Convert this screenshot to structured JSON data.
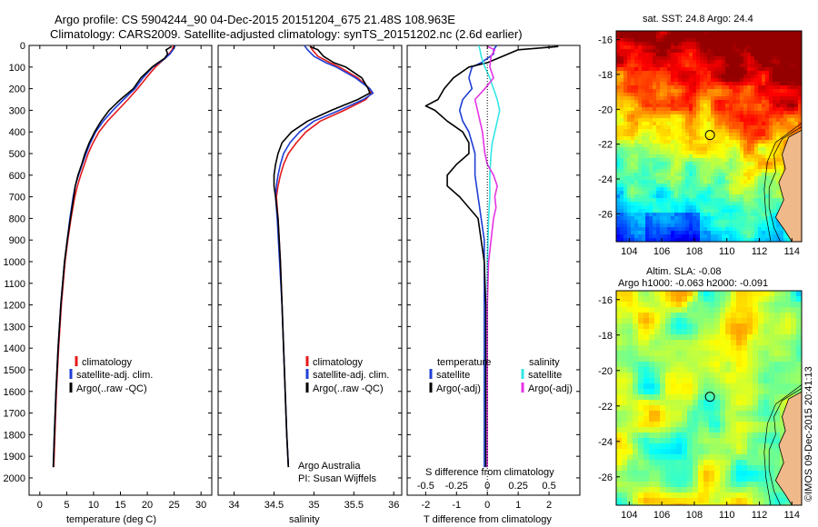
{
  "header": {
    "line1": "Argo profile: CS 5904244_90 04-Dec-2015 20151204_675 21.48S 108.963E",
    "line2": "Climatology: CARS2009. Satellite-adjusted climatology: synTS_20151202.nc (2.6d earlier)"
  },
  "colors": {
    "climatology": "#e41a1c",
    "satellite": "#1f3fd6",
    "argo": "#000000",
    "satellite_salinity": "#33e6e6",
    "argo_salinity": "#e633e6"
  },
  "chart_data": [
    {
      "type": "line",
      "name": "temperature-panel",
      "xlabel": "temperature (deg C)",
      "xlim": [
        -2,
        32
      ],
      "xticks": [
        "0",
        "5",
        "10",
        "15",
        "20",
        "25",
        "30"
      ],
      "ylim": [
        2080,
        0
      ],
      "yticks": [
        "0",
        "100",
        "200",
        "300",
        "400",
        "500",
        "600",
        "700",
        "800",
        "900",
        "1000",
        "1100",
        "1200",
        "1300",
        "1400",
        "1500",
        "1600",
        "1700",
        "1800",
        "1900",
        "2000"
      ],
      "legend": [
        "climatology",
        "satellite-adj. clim.",
        "Argo(..raw -QC)"
      ],
      "series": [
        {
          "name": "climatology",
          "depth": [
            0,
            20,
            40,
            60,
            80,
            100,
            150,
            200,
            250,
            300,
            350,
            400,
            450,
            500,
            550,
            600,
            650,
            700,
            800,
            900,
            1000,
            1200,
            1400,
            1600,
            1800,
            1950
          ],
          "values": [
            24.9,
            24.6,
            24.0,
            23.3,
            22.4,
            21.5,
            19.8,
            18.2,
            16.4,
            14.5,
            12.6,
            11.0,
            9.9,
            9.0,
            8.3,
            7.6,
            7.0,
            6.5,
            5.8,
            5.2,
            4.7,
            4.0,
            3.5,
            3.1,
            2.8,
            2.6
          ]
        },
        {
          "name": "satellite-adj. clim.",
          "depth": [
            0,
            20,
            40,
            60,
            80,
            100,
            150,
            200,
            250,
            300,
            350,
            400,
            450,
            500,
            550,
            600,
            650,
            700,
            800,
            900,
            1000,
            1200,
            1400,
            1600,
            1800,
            1950
          ],
          "values": [
            25.2,
            24.8,
            24.2,
            23.3,
            22.2,
            21.0,
            19.2,
            17.7,
            15.6,
            13.6,
            11.8,
            10.4,
            9.4,
            8.6,
            7.9,
            7.2,
            6.6,
            6.2,
            5.6,
            5.1,
            4.6,
            3.9,
            3.4,
            3.0,
            2.7,
            2.5
          ]
        },
        {
          "name": "Argo(..raw -QC)",
          "depth": [
            5,
            20,
            40,
            60,
            80,
            100,
            150,
            200,
            250,
            300,
            350,
            400,
            450,
            500,
            550,
            600,
            650,
            700,
            800,
            900,
            1000,
            1200,
            1400,
            1600,
            1800,
            1950
          ],
          "values": [
            24.5,
            23.5,
            23.8,
            23.2,
            22.0,
            20.9,
            18.8,
            17.4,
            15.0,
            12.9,
            11.4,
            10.2,
            9.2,
            8.4,
            7.8,
            7.1,
            6.6,
            6.3,
            5.7,
            5.1,
            4.6,
            3.9,
            3.4,
            3.0,
            2.7,
            2.5
          ]
        }
      ]
    },
    {
      "type": "line",
      "name": "salinity-panel",
      "xlabel": "salinity",
      "xlim": [
        33.8,
        36.1
      ],
      "xticks": [
        "34",
        "34.5",
        "35",
        "35.5",
        "36"
      ],
      "ylim": [
        2080,
        0
      ],
      "legend": [
        "climatology",
        "satellite-adj. clim.",
        "Argo(..raw -QC)"
      ],
      "annotation": [
        "Argo Australia",
        "PI: Susan Wijffels"
      ],
      "series": [
        {
          "name": "climatology",
          "depth": [
            0,
            20,
            50,
            80,
            100,
            150,
            200,
            220,
            250,
            300,
            350,
            400,
            450,
            500,
            550,
            600,
            650,
            700,
            800,
            1000,
            1200,
            1500,
            1800,
            1950
          ],
          "values": [
            34.95,
            34.98,
            35.05,
            35.2,
            35.32,
            35.55,
            35.7,
            35.72,
            35.65,
            35.38,
            35.08,
            34.9,
            34.78,
            34.68,
            34.62,
            34.58,
            34.55,
            34.53,
            34.55,
            34.58,
            34.6,
            34.63,
            34.66,
            34.68
          ]
        },
        {
          "name": "satellite-adj. clim.",
          "depth": [
            0,
            20,
            50,
            80,
            100,
            150,
            200,
            220,
            250,
            300,
            350,
            400,
            450,
            500,
            550,
            600,
            650,
            700,
            800,
            1000,
            1200,
            1500,
            1800,
            1950
          ],
          "values": [
            34.88,
            34.92,
            35.0,
            35.15,
            35.28,
            35.52,
            35.7,
            35.74,
            35.62,
            35.32,
            35.0,
            34.82,
            34.7,
            34.62,
            34.58,
            34.55,
            34.53,
            34.52,
            34.54,
            34.57,
            34.6,
            34.63,
            34.66,
            34.68
          ]
        },
        {
          "name": "Argo(..raw -QC)",
          "depth": [
            5,
            20,
            50,
            80,
            100,
            150,
            200,
            220,
            250,
            300,
            350,
            400,
            450,
            500,
            550,
            600,
            650,
            700,
            800,
            1000,
            1200,
            1500,
            1800,
            1950
          ],
          "values": [
            34.95,
            35.05,
            35.12,
            35.25,
            35.4,
            35.6,
            35.68,
            35.7,
            35.55,
            35.22,
            34.92,
            34.72,
            34.6,
            34.55,
            34.52,
            34.5,
            34.5,
            34.52,
            34.55,
            34.58,
            34.6,
            34.63,
            34.66,
            34.68
          ]
        }
      ]
    },
    {
      "type": "line",
      "name": "difference-panel",
      "xlabel": "T difference from climatology",
      "xlabel_top": "S difference from climatology",
      "xlim": [
        -2.6,
        3.0
      ],
      "xticks": [
        "-2",
        "-1",
        "0",
        "1",
        "2"
      ],
      "xticks_top": [
        "-0.5",
        "-0.25",
        "0",
        "0.25",
        "0.5"
      ],
      "ylim": [
        2080,
        0
      ],
      "legend": {
        "headers": [
          "temperature",
          "salinity"
        ],
        "left": [
          "satellite",
          "Argo(-adj)"
        ],
        "right": [
          "satellite",
          "Argo(-adj)"
        ]
      },
      "series": [
        {
          "name": "temperature satellite",
          "depth": [
            0,
            20,
            40,
            60,
            80,
            100,
            150,
            200,
            250,
            300,
            350,
            400,
            450,
            500,
            600,
            700,
            800,
            900,
            1000,
            1200,
            1500,
            1800,
            1950
          ],
          "values": [
            0.3,
            0.2,
            0.2,
            0.0,
            -0.2,
            -0.5,
            -0.6,
            -0.5,
            -0.8,
            -0.9,
            -0.8,
            -0.6,
            -0.5,
            -0.4,
            -0.4,
            -0.3,
            -0.2,
            -0.1,
            -0.1,
            -0.1,
            -0.1,
            -0.1,
            -0.1
          ]
        },
        {
          "name": "temperature Argo(-adj)",
          "depth": [
            5,
            20,
            50,
            80,
            100,
            150,
            200,
            250,
            280,
            300,
            350,
            400,
            450,
            500,
            550,
            600,
            650,
            700,
            800,
            900,
            1000,
            1200,
            1500,
            1800,
            1950
          ],
          "values": [
            2.3,
            1.0,
            0.5,
            0.0,
            -0.6,
            -1.1,
            -1.4,
            -1.6,
            -2.0,
            -1.7,
            -1.3,
            -0.8,
            -0.6,
            -0.6,
            -1.0,
            -1.3,
            -1.3,
            -0.9,
            -0.3,
            -0.2,
            -0.1,
            -0.05,
            -0.05,
            -0.05,
            -0.05
          ]
        },
        {
          "name": "salinity satellite",
          "depth": [
            0,
            20,
            50,
            100,
            150,
            200,
            250,
            300,
            350,
            400,
            450,
            500,
            600,
            700,
            800,
            1000,
            1200,
            1500,
            1800,
            1950
          ],
          "values": [
            -0.07,
            -0.06,
            -0.05,
            -0.02,
            0.02,
            0.05,
            0.08,
            0.1,
            0.08,
            0.06,
            0.04,
            0.03,
            0.02,
            0.02,
            0.01,
            0.0,
            0.0,
            0.0,
            0.0,
            0.0
          ]
        },
        {
          "name": "salinity Argo(-adj)",
          "depth": [
            5,
            20,
            50,
            100,
            150,
            200,
            250,
            300,
            350,
            400,
            450,
            500,
            550,
            600,
            650,
            700,
            750,
            800,
            1000,
            1200,
            1500,
            1800,
            1950
          ],
          "values": [
            0.0,
            0.06,
            0.03,
            0.02,
            0.05,
            -0.02,
            -0.1,
            -0.08,
            -0.06,
            -0.04,
            -0.03,
            -0.02,
            0.0,
            0.05,
            0.08,
            0.06,
            0.07,
            0.05,
            0.01,
            0.0,
            0.0,
            0.0,
            0.0
          ]
        }
      ]
    },
    {
      "type": "heatmap",
      "name": "sst-map",
      "title": "sat. SST: 24.8 Argo: 24.4",
      "xticks": [
        "104",
        "106",
        "108",
        "110",
        "112",
        "114"
      ],
      "yticks": [
        "-16",
        "-18",
        "-20",
        "-22",
        "-24",
        "-26"
      ],
      "xlim": [
        103.2,
        114.6
      ],
      "ylim": [
        -27.6,
        -15.5
      ],
      "marker": {
        "lon": 108.963,
        "lat": -21.48
      }
    },
    {
      "type": "heatmap",
      "name": "sla-map",
      "title_line1": "Altim. SLA: -0.08",
      "title_line2": "Argo h1000: -0.063 h2000: -0.091",
      "xticks": [
        "104",
        "106",
        "108",
        "110",
        "112",
        "114"
      ],
      "yticks": [
        "-16",
        "-18",
        "-20",
        "-22",
        "-24",
        "-26"
      ],
      "xlim": [
        103.2,
        114.6
      ],
      "ylim": [
        -27.6,
        -15.5
      ],
      "marker": {
        "lon": 108.963,
        "lat": -21.48
      }
    }
  ],
  "credit": "©IMOS 09-Dec-2015 20:41:13"
}
